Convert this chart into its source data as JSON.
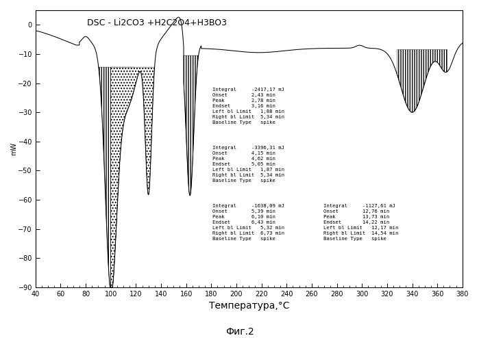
{
  "title": "DSC - Li2CO3 +H2C2O4+H3BO3",
  "xlabel": "Температура,°C",
  "ylabel": "mW",
  "caption": "Фиг.2",
  "xlim": [
    40,
    380
  ],
  "ylim": [
    -90,
    5
  ],
  "xticks": [
    40,
    60,
    80,
    100,
    120,
    140,
    160,
    180,
    200,
    220,
    240,
    260,
    280,
    300,
    320,
    340,
    360,
    380
  ],
  "yticks": [
    0,
    -10,
    -20,
    -30,
    -40,
    -50,
    -60,
    -70,
    -80,
    -90
  ],
  "bg_color": "#ffffff",
  "line_color": "#000000",
  "annotation1": "Integral     -2417,17 mJ\nOnset        2,43 min\nPeak         2,78 min\nEndset       3,16 min\nLeft bl Limit   1,88 min\nRight bl Limit  5,34 min\nBaseline Type   spike",
  "annotation2": "Integral     -3396,31 mJ\nOnset        4,15 min\nPeak         4,62 min\nEndset       5,05 min\nLeft bl Limit   1,87 min\nRight bl Limit  5,34 min\nBaseline Type   spike",
  "annotation3": "Integral     -1638,09 mJ\nOnset        5,39 min\nPeak         6,10 min\nEndset       6,43 min\nLeft bl Limit   5,32 min\nRight bl Limit  6,73 min\nBaseline Type   spike",
  "annotation4": "Integral     -1127,61 mJ\nOnset        12,76 min\nPeak         13,73 min\nEndset       14,22 min\nLeft bl Limit   12,17 min\nRight bl Limit  14,54 min\nBaseline Type   spike"
}
